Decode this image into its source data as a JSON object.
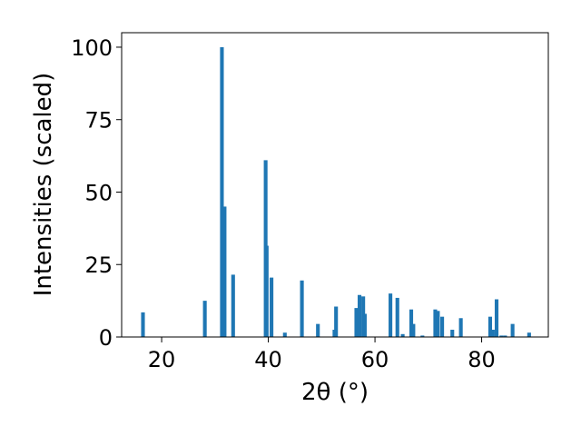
{
  "chart_data": {
    "type": "bar",
    "title": "",
    "xlabel": "2θ (°)",
    "ylabel": "Intensities (scaled)",
    "xlim": [
      12.5,
      92.5
    ],
    "ylim": [
      0,
      105
    ],
    "xticks": [
      20,
      40,
      60,
      80
    ],
    "yticks": [
      0,
      25,
      50,
      75,
      100
    ],
    "grid": false,
    "bar_color": "#1f77b4",
    "bar_width_deg": 0.7,
    "x": [
      16.5,
      28.1,
      31.3,
      31.8,
      33.4,
      39.5,
      39.7,
      40.6,
      43.1,
      46.3,
      49.3,
      52.4,
      52.7,
      56.5,
      57.1,
      57.8,
      58.1,
      62.9,
      64.2,
      65.2,
      66.8,
      67.2,
      68.9,
      71.3,
      71.8,
      72.6,
      74.5,
      76.1,
      81.6,
      82.1,
      82.8,
      83.7,
      84.4,
      85.8,
      88.9
    ],
    "values": [
      8.5,
      12.5,
      100,
      45,
      21.5,
      61,
      31.5,
      20.5,
      1.5,
      19.5,
      4.5,
      2.5,
      10.5,
      10,
      14.5,
      14,
      8,
      15,
      13.5,
      1,
      9.5,
      4.5,
      0.5,
      9.5,
      9,
      7,
      2.5,
      6.5,
      7,
      2.5,
      13,
      0.5,
      0.5,
      4.5,
      1.5
    ]
  }
}
